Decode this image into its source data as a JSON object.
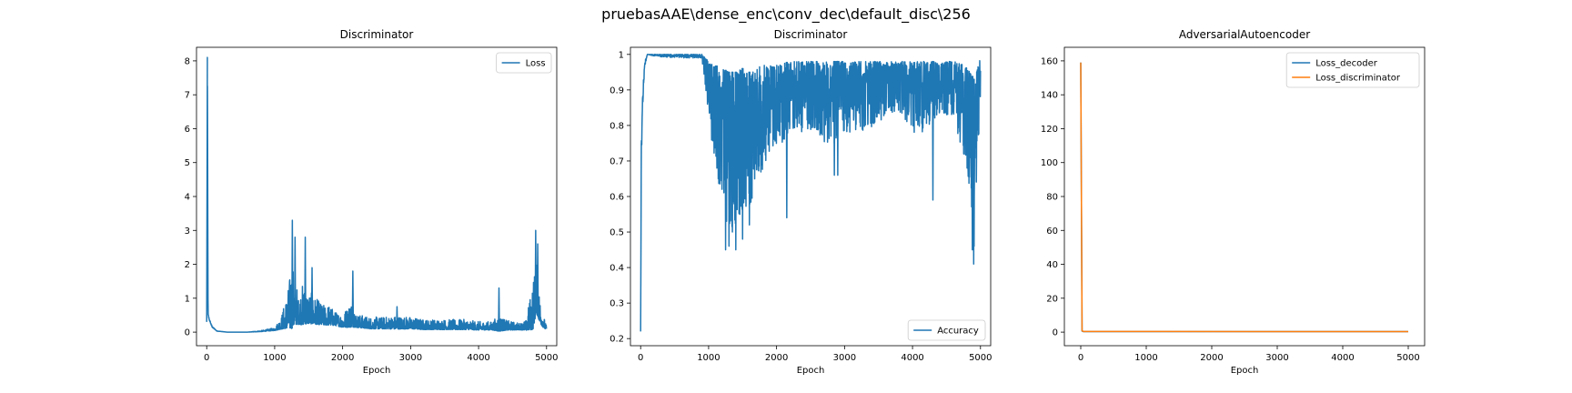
{
  "figure": {
    "suptitle": "pruebasAAE\\dense_enc\\conv_dec\\default_disc\\256"
  },
  "colors": {
    "blue": "#1f77b4",
    "orange": "#ff7f0e",
    "axis": "#000000",
    "legend_border": "#cccccc"
  },
  "chart_data": [
    {
      "type": "line",
      "title": "Discriminator",
      "xlabel": "Epoch",
      "ylabel": "",
      "xlim": [
        -150,
        5150
      ],
      "ylim": [
        -0.4,
        8.4
      ],
      "xticks": [
        0,
        1000,
        2000,
        3000,
        4000,
        5000
      ],
      "yticks": [
        0,
        1,
        2,
        3,
        4,
        5,
        6,
        7,
        8
      ],
      "legend_position": "upper right",
      "series": [
        {
          "name": "Loss",
          "color": "#1f77b4",
          "kind": "noisy",
          "x": [
            0,
            10,
            20,
            40,
            80,
            150,
            300,
            600,
            800,
            1000,
            1100,
            1200,
            1250,
            1300,
            1350,
            1400,
            1500,
            1600,
            1700,
            1800,
            1900,
            2000,
            2100,
            2150,
            2200,
            2400,
            2600,
            2800,
            3000,
            3200,
            3400,
            3600,
            3800,
            4000,
            4200,
            4300,
            4400,
            4600,
            4700,
            4800,
            4850,
            4900,
            4950,
            5000
          ],
          "base": [
            0.3,
            8.1,
            0.5,
            0.35,
            0.15,
            0.03,
            0.0,
            0.0,
            0.02,
            0.06,
            0.15,
            0.3,
            0.4,
            0.45,
            0.35,
            0.4,
            0.4,
            0.35,
            0.3,
            0.3,
            0.25,
            0.2,
            0.25,
            0.3,
            0.2,
            0.15,
            0.15,
            0.15,
            0.15,
            0.12,
            0.12,
            0.12,
            0.12,
            0.1,
            0.1,
            0.1,
            0.1,
            0.1,
            0.1,
            0.3,
            0.8,
            0.4,
            0.2,
            0.08
          ],
          "amp": [
            0,
            0,
            0.1,
            0.05,
            0.03,
            0.01,
            0.0,
            0.0,
            0.03,
            0.08,
            0.4,
            1.2,
            2.0,
            1.5,
            0.8,
            1.2,
            1.0,
            0.8,
            0.6,
            0.6,
            0.4,
            0.4,
            0.7,
            1.0,
            0.4,
            0.35,
            0.35,
            0.4,
            0.35,
            0.3,
            0.3,
            0.3,
            0.3,
            0.25,
            0.25,
            0.5,
            0.3,
            0.2,
            0.3,
            1.5,
            1.5,
            0.8,
            0.4,
            0.1
          ],
          "peaks": [
            [
              1260,
              3.3
            ],
            [
              1300,
              2.8
            ],
            [
              1450,
              2.8
            ],
            [
              1550,
              1.9
            ],
            [
              2150,
              1.8
            ],
            [
              2800,
              0.75
            ],
            [
              4300,
              1.3
            ],
            [
              4840,
              3.0
            ],
            [
              4870,
              2.6
            ]
          ]
        }
      ]
    },
    {
      "type": "line",
      "title": "Discriminator",
      "xlabel": "Epoch",
      "ylabel": "",
      "xlim": [
        -150,
        5150
      ],
      "ylim": [
        0.18,
        1.02
      ],
      "xticks": [
        0,
        1000,
        2000,
        3000,
        4000,
        5000
      ],
      "yticks": [
        0.2,
        0.3,
        0.4,
        0.5,
        0.6,
        0.7,
        0.8,
        0.9,
        1.0
      ],
      "legend_position": "lower right",
      "series": [
        {
          "name": "Accuracy",
          "color": "#1f77b4",
          "kind": "noisy_down",
          "x": [
            0,
            10,
            30,
            60,
            100,
            200,
            500,
            900,
            1000,
            1100,
            1200,
            1300,
            1400,
            1500,
            1600,
            1700,
            1800,
            1900,
            2000,
            2200,
            2400,
            2600,
            2800,
            3000,
            3200,
            3400,
            3600,
            3800,
            4000,
            4200,
            4400,
            4600,
            4800,
            4850,
            4900,
            4950,
            5000
          ],
          "base": [
            0.22,
            0.75,
            0.9,
            0.98,
            1.0,
            1.0,
            1.0,
            1.0,
            0.98,
            0.97,
            0.96,
            0.95,
            0.95,
            0.96,
            0.95,
            0.96,
            0.97,
            0.97,
            0.97,
            0.98,
            0.98,
            0.98,
            0.98,
            0.98,
            0.98,
            0.98,
            0.98,
            0.98,
            0.98,
            0.98,
            0.98,
            0.98,
            0.97,
            0.95,
            0.93,
            0.96,
            0.99
          ],
          "amp": [
            0,
            0.08,
            0.05,
            0.02,
            0.0,
            0.005,
            0.01,
            0.01,
            0.15,
            0.3,
            0.4,
            0.45,
            0.45,
            0.4,
            0.4,
            0.3,
            0.3,
            0.25,
            0.25,
            0.2,
            0.2,
            0.2,
            0.25,
            0.2,
            0.2,
            0.2,
            0.15,
            0.15,
            0.2,
            0.2,
            0.15,
            0.15,
            0.3,
            0.45,
            0.5,
            0.3,
            0.1
          ],
          "peaks": [
            [
              1250,
              0.45
            ],
            [
              1300,
              0.46
            ],
            [
              1350,
              0.5
            ],
            [
              1400,
              0.45
            ],
            [
              1600,
              0.52
            ],
            [
              1500,
              0.48
            ],
            [
              2150,
              0.54
            ],
            [
              2900,
              0.66
            ],
            [
              2850,
              0.66
            ],
            [
              4300,
              0.59
            ],
            [
              4900,
              0.41
            ],
            [
              4880,
              0.45
            ]
          ]
        }
      ]
    },
    {
      "type": "line",
      "title": "AdversarialAutoencoder",
      "xlabel": "Epoch",
      "ylabel": "",
      "xlim": [
        -250,
        5250
      ],
      "ylim": [
        -8,
        168
      ],
      "xticks": [
        0,
        1000,
        2000,
        3000,
        4000,
        5000
      ],
      "yticks": [
        0,
        20,
        40,
        60,
        80,
        100,
        120,
        140,
        160
      ],
      "legend_position": "upper right",
      "series": [
        {
          "name": "Loss_decoder",
          "color": "#1f77b4",
          "kind": "plain",
          "x": [
            0,
            20,
            40,
            5000
          ],
          "y": [
            159,
            0.6,
            0.3,
            0.3
          ]
        },
        {
          "name": "Loss_discriminator",
          "color": "#ff7f0e",
          "kind": "plain",
          "x": [
            0,
            20,
            40,
            5000
          ],
          "y": [
            159,
            0.8,
            0.4,
            0.3
          ]
        }
      ]
    }
  ]
}
